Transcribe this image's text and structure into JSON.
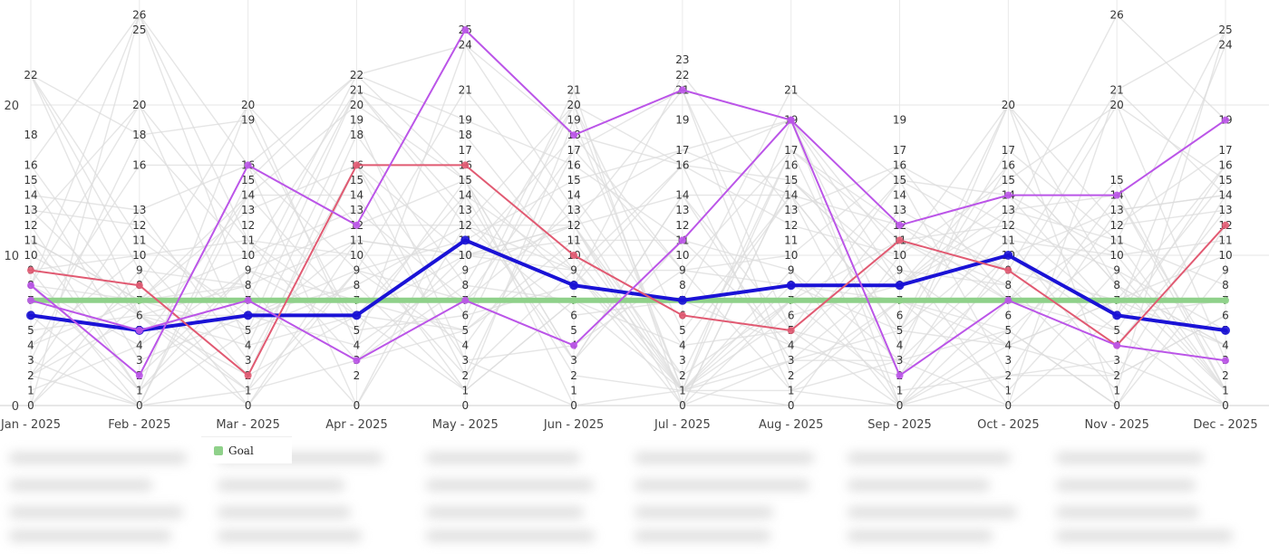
{
  "chart_data": {
    "type": "line",
    "title": "",
    "xlabel": "",
    "ylabel": "",
    "categories": [
      "Jan - 2025",
      "Feb - 2025",
      "Mar - 2025",
      "Apr - 2025",
      "May - 2025",
      "Jun - 2025",
      "Jul - 2025",
      "Aug - 2025",
      "Sep - 2025",
      "Oct - 2025",
      "Nov - 2025",
      "Dec - 2025"
    ],
    "ylim": [
      0,
      27
    ],
    "y_ticks": [
      0,
      10,
      20
    ],
    "grid": true,
    "legend": {
      "placement": "bottom-left",
      "entries": [
        "Goal"
      ]
    },
    "series": [
      {
        "name": "Goal",
        "color": "#8fd18a",
        "values": [
          7,
          7,
          7,
          7,
          7,
          7,
          7,
          7,
          7,
          7,
          7,
          7
        ]
      },
      {
        "color": "#1a12d6",
        "values": [
          6,
          5,
          6,
          6,
          11,
          8,
          7,
          8,
          8,
          10,
          6,
          5
        ]
      },
      {
        "color": "#e15a72",
        "values": [
          9,
          8,
          2,
          16,
          16,
          10,
          6,
          5,
          11,
          9,
          4,
          12
        ]
      },
      {
        "color": "#bb55e8",
        "values": [
          8,
          2,
          16,
          12,
          25,
          18,
          21,
          19,
          2,
          7,
          4,
          3
        ]
      },
      {
        "color": "#bb55e8",
        "values": [
          7,
          5,
          7,
          3,
          7,
          4,
          11,
          19,
          12,
          14,
          14,
          19
        ]
      }
    ],
    "background_series_color": "#dcdcdc",
    "column_value_labels": [
      [
        0,
        1,
        2,
        3,
        4,
        5,
        6,
        7,
        8,
        9,
        10,
        11,
        12,
        13,
        14,
        15,
        16,
        18,
        22
      ],
      [
        0,
        1,
        2,
        3,
        4,
        5,
        6,
        7,
        8,
        9,
        10,
        11,
        12,
        13,
        16,
        18,
        20,
        25,
        26
      ],
      [
        0,
        1,
        2,
        3,
        4,
        5,
        6,
        7,
        8,
        9,
        10,
        11,
        12,
        13,
        14,
        15,
        16,
        19,
        20
      ],
      [
        0,
        2,
        3,
        4,
        5,
        6,
        7,
        8,
        9,
        10,
        11,
        12,
        13,
        14,
        15,
        16,
        18,
        19,
        20,
        21,
        22
      ],
      [
        0,
        1,
        2,
        3,
        4,
        5,
        6,
        7,
        8,
        9,
        10,
        11,
        12,
        13,
        14,
        15,
        16,
        17,
        18,
        19,
        21,
        24,
        25
      ],
      [
        0,
        1,
        2,
        3,
        4,
        5,
        6,
        7,
        8,
        9,
        10,
        11,
        12,
        13,
        14,
        15,
        16,
        17,
        18,
        19,
        20,
        21
      ],
      [
        0,
        1,
        2,
        3,
        4,
        5,
        6,
        7,
        8,
        9,
        10,
        11,
        12,
        13,
        14,
        16,
        17,
        19,
        21,
        22,
        23
      ],
      [
        0,
        1,
        2,
        3,
        4,
        5,
        6,
        7,
        8,
        9,
        10,
        11,
        12,
        13,
        14,
        15,
        16,
        17,
        19,
        21
      ],
      [
        0,
        1,
        2,
        3,
        4,
        5,
        6,
        7,
        8,
        9,
        10,
        11,
        12,
        13,
        14,
        15,
        16,
        17,
        19
      ],
      [
        0,
        1,
        2,
        3,
        4,
        5,
        6,
        7,
        8,
        9,
        10,
        11,
        12,
        13,
        14,
        15,
        16,
        17,
        20
      ],
      [
        0,
        1,
        2,
        3,
        4,
        5,
        6,
        7,
        8,
        9,
        10,
        11,
        12,
        13,
        14,
        15,
        20,
        21,
        26
      ],
      [
        0,
        1,
        2,
        3,
        4,
        5,
        6,
        7,
        8,
        9,
        10,
        11,
        12,
        13,
        14,
        15,
        16,
        17,
        19,
        24,
        25
      ]
    ]
  }
}
